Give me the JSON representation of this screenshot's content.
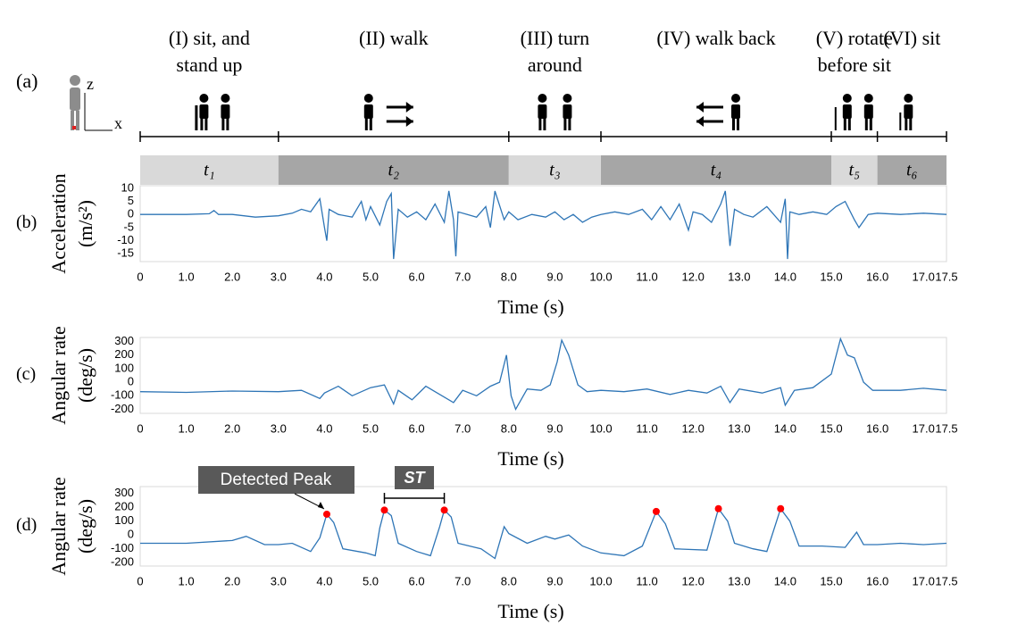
{
  "phase_panel": "(a)",
  "sensor_axes": [
    "z",
    "x"
  ],
  "phases": [
    {
      "label": [
        "(I) sit, and",
        "stand up"
      ],
      "symbol": "t₁",
      "start": 0,
      "end": 3,
      "shade": "#d9d9d9"
    },
    {
      "label": [
        "(II) walk"
      ],
      "symbol": "t₂",
      "start": 3,
      "end": 8,
      "shade": "#a6a6a6"
    },
    {
      "label": [
        "(III) turn",
        "around"
      ],
      "symbol": "t₃",
      "start": 8,
      "end": 10,
      "shade": "#d9d9d9"
    },
    {
      "label": [
        "(IV) walk back"
      ],
      "symbol": "t₄",
      "start": 10,
      "end": 15,
      "shade": "#a6a6a6"
    },
    {
      "label": [
        "(V) rotate",
        "before sit"
      ],
      "symbol": "t₅",
      "start": 15,
      "end": 16,
      "shade": "#d9d9d9"
    },
    {
      "label": [
        "(VI) sit"
      ],
      "symbol": "t₆",
      "start": 16,
      "end": 17.5,
      "shade": "#a6a6a6"
    }
  ],
  "chart_data": [
    {
      "type": "line",
      "panel": "(b)",
      "ylabel": [
        "Acceleration",
        "(m/s²)"
      ],
      "xlabel": "Time (s)",
      "xlim": [
        0,
        17.5
      ],
      "ylim": [
        -18,
        11
      ],
      "xticks": [
        0,
        {
          "value": 1,
          "label": "1.0"
        },
        {
          "value": 2,
          "label": "2.0"
        },
        {
          "value": 3,
          "label": "3.0"
        },
        {
          "value": 4,
          "label": "4.0"
        },
        {
          "value": 5,
          "label": "5.0"
        },
        {
          "value": 6,
          "label": "6.0"
        },
        {
          "value": 7,
          "label": "7.0"
        },
        {
          "value": 8,
          "label": "8.0"
        },
        {
          "value": 9,
          "label": "9.0"
        },
        {
          "value": 10,
          "label": "10.0"
        },
        {
          "value": 11,
          "label": "11.0"
        },
        {
          "value": 12,
          "label": "12.0"
        },
        {
          "value": 13,
          "label": "13.0"
        },
        {
          "value": 14,
          "label": "14.0"
        },
        {
          "value": 15,
          "label": "15.0"
        },
        {
          "value": 16,
          "label": "16.0"
        },
        {
          "value": 17,
          "label": "17.0"
        },
        17.5
      ],
      "yticks": [
        10,
        5,
        0,
        -5,
        -10,
        -15
      ],
      "series": [
        {
          "color": "#2e75b6",
          "x": [
            0,
            0.5,
            1.0,
            1.5,
            1.6,
            1.7,
            2.0,
            2.5,
            3.0,
            3.3,
            3.5,
            3.7,
            3.9,
            4.0,
            4.05,
            4.1,
            4.3,
            4.6,
            4.8,
            4.9,
            5.0,
            5.2,
            5.35,
            5.45,
            5.5,
            5.6,
            5.8,
            6.0,
            6.2,
            6.4,
            6.6,
            6.7,
            6.8,
            6.85,
            6.9,
            7.1,
            7.3,
            7.5,
            7.6,
            7.7,
            7.9,
            8.0,
            8.2,
            8.5,
            8.8,
            9.0,
            9.2,
            9.4,
            9.6,
            9.8,
            10.0,
            10.3,
            10.6,
            10.9,
            11.1,
            11.3,
            11.5,
            11.7,
            11.9,
            12.0,
            12.2,
            12.4,
            12.6,
            12.7,
            12.8,
            12.9,
            13.1,
            13.3,
            13.6,
            13.9,
            14.0,
            14.05,
            14.1,
            14.3,
            14.6,
            14.9,
            15.1,
            15.3,
            15.5,
            15.6,
            15.8,
            16.0,
            16.5,
            17.0,
            17.5
          ],
          "values": [
            0,
            0,
            0,
            0.3,
            1.5,
            0,
            0,
            -1,
            -0.5,
            0.5,
            2,
            1,
            6,
            -5,
            -10,
            2,
            0,
            -1,
            5,
            -2,
            3,
            -4,
            5,
            8,
            -17,
            2,
            -1,
            1,
            -2,
            4,
            -3,
            9,
            -2,
            -16,
            1,
            0,
            -1,
            3,
            -5,
            9,
            -2,
            1,
            -2,
            0,
            -1,
            1,
            -2,
            0,
            -3,
            -1,
            0,
            1,
            0,
            2,
            -2,
            3,
            -2,
            4,
            -6,
            1,
            0,
            -3,
            4,
            9,
            -12,
            2,
            0,
            -1,
            3,
            -3,
            6,
            -17,
            1,
            0,
            1,
            0,
            3,
            5,
            -2,
            -5,
            0,
            0.5,
            0,
            0.5,
            0
          ]
        }
      ]
    },
    {
      "type": "line",
      "panel": "(c)",
      "ylabel": [
        "Angular rate",
        "(deg/s)"
      ],
      "xlabel": "Time (s)",
      "xlim": [
        0,
        17.5
      ],
      "ylim": [
        -230,
        330
      ],
      "xticks": [
        0,
        {
          "value": 1,
          "label": "1.0"
        },
        {
          "value": 2,
          "label": "2.0"
        },
        {
          "value": 3,
          "label": "3.0"
        },
        {
          "value": 4,
          "label": "4.0"
        },
        {
          "value": 5,
          "label": "5.0"
        },
        {
          "value": 6,
          "label": "6.0"
        },
        {
          "value": 7,
          "label": "7.0"
        },
        {
          "value": 8,
          "label": "8.0"
        },
        {
          "value": 9,
          "label": "9.0"
        },
        {
          "value": 10,
          "label": "10.0"
        },
        {
          "value": 11,
          "label": "11.0"
        },
        {
          "value": 12,
          "label": "12.0"
        },
        {
          "value": 13,
          "label": "13.0"
        },
        {
          "value": 14,
          "label": "14.0"
        },
        {
          "value": 15,
          "label": "15.0"
        },
        {
          "value": 16,
          "label": "16.0"
        },
        {
          "value": 17,
          "label": "17.0"
        },
        17.5
      ],
      "yticks": [
        300,
        200,
        100,
        0,
        -100,
        -200
      ],
      "series": [
        {
          "color": "#2e75b6",
          "x": [
            0,
            1,
            2,
            3,
            3.5,
            3.9,
            4.0,
            4.3,
            4.6,
            5.0,
            5.3,
            5.5,
            5.6,
            5.9,
            6.2,
            6.4,
            6.8,
            7.0,
            7.3,
            7.6,
            7.8,
            7.95,
            8.05,
            8.15,
            8.4,
            8.7,
            8.9,
            9.05,
            9.15,
            9.3,
            9.5,
            9.7,
            10,
            10.5,
            11,
            11.5,
            11.9,
            12.3,
            12.6,
            12.8,
            13.0,
            13.5,
            13.9,
            14.0,
            14.2,
            14.6,
            15.0,
            15.2,
            15.35,
            15.5,
            15.7,
            15.9,
            16.5,
            17.0,
            17.5
          ],
          "values": [
            -70,
            -75,
            -65,
            -70,
            -60,
            -120,
            -80,
            -30,
            -100,
            -40,
            -20,
            -160,
            -60,
            -130,
            -30,
            -70,
            -150,
            -60,
            -100,
            -30,
            0,
            200,
            -100,
            -200,
            -50,
            -60,
            -20,
            150,
            310,
            200,
            -20,
            -70,
            -60,
            -70,
            -50,
            -90,
            -60,
            -80,
            -30,
            -150,
            -50,
            -80,
            -40,
            -170,
            -60,
            -40,
            60,
            320,
            200,
            180,
            0,
            -60,
            -60,
            -45,
            -60
          ]
        }
      ]
    },
    {
      "type": "line",
      "panel": "(d)",
      "ylabel": [
        "Angular rate",
        "(deg/s)"
      ],
      "xlabel": "Time (s)",
      "xlim": [
        0,
        17.5
      ],
      "ylim": [
        -225,
        350
      ],
      "xticks": [
        0,
        {
          "value": 1,
          "label": "1.0"
        },
        {
          "value": 2,
          "label": "2.0"
        },
        {
          "value": 3,
          "label": "3.0"
        },
        {
          "value": 4,
          "label": "4.0"
        },
        {
          "value": 5,
          "label": "5.0"
        },
        {
          "value": 6,
          "label": "6.0"
        },
        {
          "value": 7,
          "label": "7.0"
        },
        {
          "value": 8,
          "label": "8.0"
        },
        {
          "value": 9,
          "label": "9.0"
        },
        {
          "value": 10,
          "label": "10.0"
        },
        {
          "value": 11,
          "label": "11.0"
        },
        {
          "value": 12,
          "label": "12.0"
        },
        {
          "value": 13,
          "label": "13.0"
        },
        {
          "value": 14,
          "label": "14.0"
        },
        {
          "value": 15,
          "label": "15.0"
        },
        {
          "value": 16,
          "label": "16.0"
        },
        {
          "value": 17,
          "label": "17.0"
        },
        17.5
      ],
      "yticks": [
        300,
        200,
        100,
        0,
        -100,
        -200
      ],
      "annotation": "ST",
      "series": [
        {
          "color": "#2e75b6",
          "x": [
            0,
            1,
            2,
            2.3,
            2.7,
            3.0,
            3.3,
            3.7,
            3.9,
            4.05,
            4.2,
            4.4,
            4.9,
            5.1,
            5.2,
            5.3,
            5.45,
            5.6,
            6.0,
            6.3,
            6.5,
            6.6,
            6.75,
            6.9,
            7.4,
            7.7,
            7.9,
            8.0,
            8.4,
            8.8,
            9.0,
            9.3,
            9.6,
            10.0,
            10.5,
            10.9,
            11.2,
            11.4,
            11.6,
            12.3,
            12.55,
            12.75,
            12.9,
            13.3,
            13.6,
            13.9,
            14.1,
            14.3,
            14.8,
            15.3,
            15.55,
            15.7,
            16.0,
            16.5,
            17.0,
            17.5
          ],
          "values": [
            -60,
            -60,
            -40,
            -10,
            -70,
            -70,
            -60,
            -120,
            -20,
            150,
            90,
            -100,
            -130,
            -150,
            50,
            180,
            140,
            -60,
            -120,
            -150,
            60,
            180,
            130,
            -60,
            -100,
            -170,
            60,
            10,
            -60,
            -10,
            -30,
            0,
            -80,
            -130,
            -150,
            -80,
            170,
            80,
            -100,
            -110,
            190,
            100,
            -60,
            -100,
            -120,
            190,
            100,
            -80,
            -80,
            -90,
            20,
            -70,
            -70,
            -60,
            -70,
            -60
          ]
        },
        {
          "name": "Detected Peak",
          "color": "#ff0000",
          "x": [
            4.05,
            5.3,
            6.6,
            11.2,
            12.55,
            13.9
          ],
          "values": [
            150,
            180,
            180,
            170,
            190,
            190
          ]
        }
      ]
    }
  ]
}
